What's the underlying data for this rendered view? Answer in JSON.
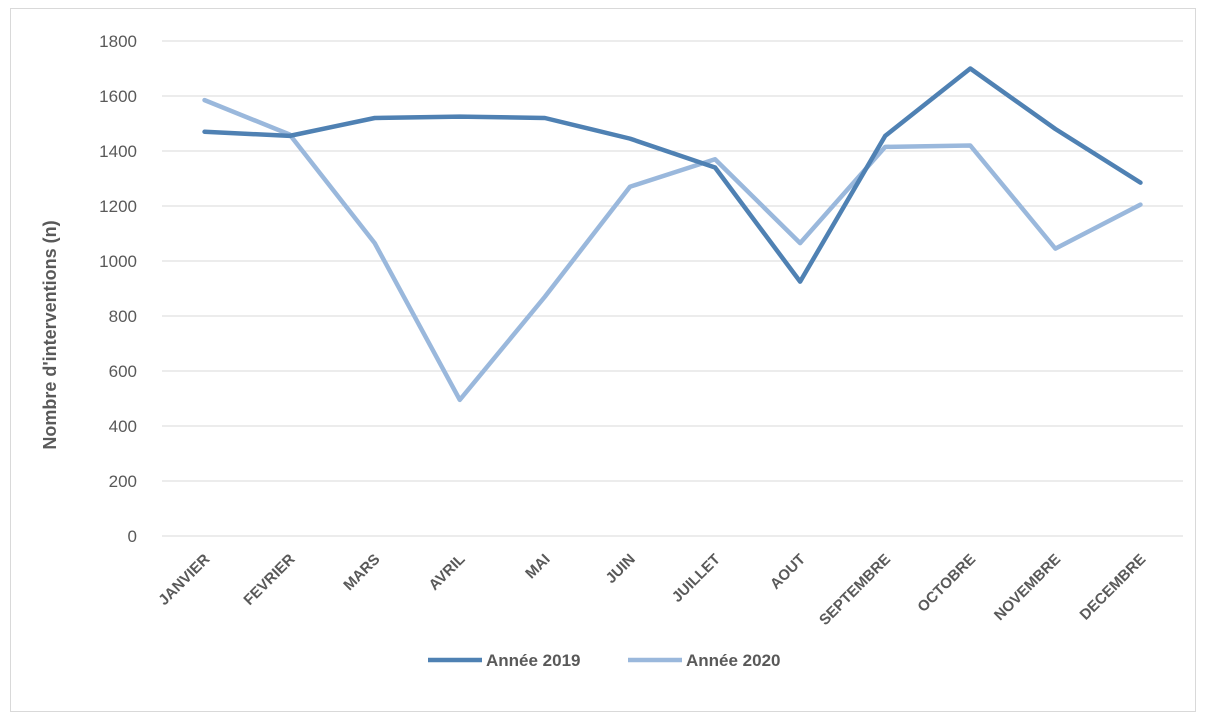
{
  "chart_data": {
    "type": "line",
    "title": "",
    "xlabel": "",
    "ylabel": "Nombre d'interventions (n)",
    "ylim": [
      0,
      1800
    ],
    "yticks": [
      0,
      200,
      400,
      600,
      800,
      1000,
      1200,
      1400,
      1600,
      1800
    ],
    "categories": [
      "JANVIER",
      "FEVRIER",
      "MARS",
      "AVRIL",
      "MAI",
      "JUIN",
      "JUILLET",
      "AOUT",
      "SEPTEMBRE",
      "OCTOBRE",
      "NOVEMBRE",
      "DECEMBRE"
    ],
    "series": [
      {
        "name": "Année 2019",
        "color": "#4f81b3",
        "values": [
          1470,
          1455,
          1520,
          1525,
          1520,
          1445,
          1340,
          925,
          1455,
          1700,
          1480,
          1285
        ]
      },
      {
        "name": "Année 2020",
        "color": "#9ab8dc",
        "values": [
          1585,
          1460,
          1065,
          495,
          870,
          1270,
          1370,
          1065,
          1415,
          1420,
          1045,
          1205
        ]
      }
    ],
    "grid": true,
    "legend_position": "bottom"
  }
}
